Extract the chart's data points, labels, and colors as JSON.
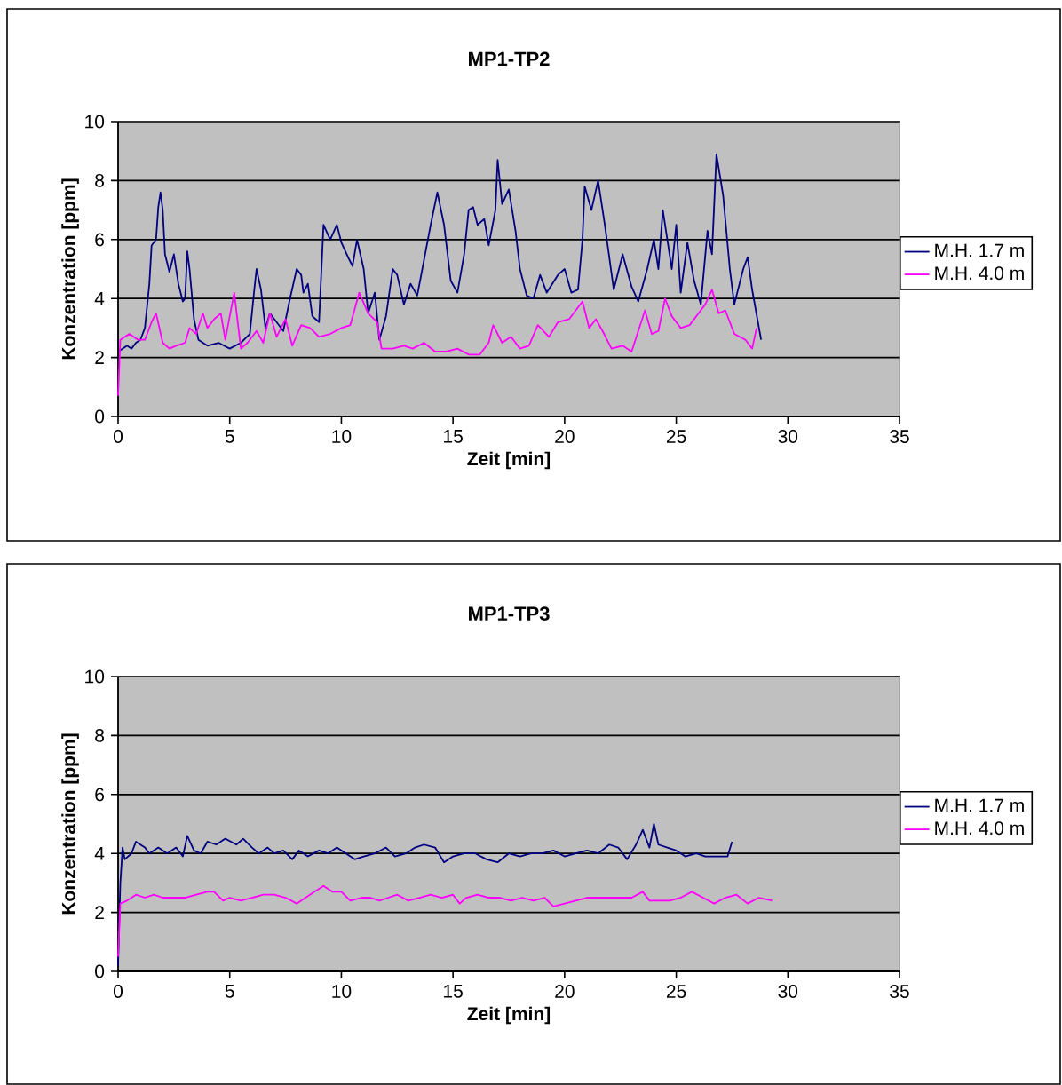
{
  "chart_data": [
    {
      "type": "line",
      "title": "MP1-TP2",
      "xlabel": "Zeit [min]",
      "ylabel": "Konzentration [ppm]",
      "xlim": [
        0,
        35
      ],
      "xticks": [
        0,
        5,
        10,
        15,
        20,
        25,
        30,
        35
      ],
      "ylim": [
        0,
        10
      ],
      "yticks": [
        0,
        2,
        4,
        6,
        8,
        10
      ],
      "grid": "y",
      "legend": "right",
      "series": [
        {
          "name": "M.H. 1.7 m",
          "color": "#000080",
          "x": [
            0,
            0.2,
            0.4,
            0.6,
            0.8,
            1.0,
            1.2,
            1.4,
            1.5,
            1.7,
            1.8,
            1.9,
            2.0,
            2.1,
            2.3,
            2.5,
            2.7,
            2.9,
            3.0,
            3.1,
            3.2,
            3.4,
            3.6,
            4.0,
            4.5,
            5.0,
            5.5,
            5.9,
            6.1,
            6.2,
            6.4,
            6.6,
            6.8,
            7.0,
            7.4,
            7.7,
            8.0,
            8.2,
            8.3,
            8.5,
            8.7,
            9.0,
            9.2,
            9.5,
            9.8,
            10.0,
            10.3,
            10.5,
            10.7,
            11.0,
            11.2,
            11.5,
            11.7,
            12.0,
            12.3,
            12.5,
            12.8,
            13.1,
            13.4,
            13.7,
            14.0,
            14.3,
            14.6,
            14.9,
            15.2,
            15.5,
            15.7,
            15.9,
            16.1,
            16.4,
            16.6,
            16.9,
            17.0,
            17.2,
            17.5,
            17.8,
            18.0,
            18.3,
            18.6,
            18.9,
            19.2,
            19.7,
            20.0,
            20.3,
            20.6,
            20.8,
            20.9,
            21.2,
            21.5,
            21.8,
            22.2,
            22.6,
            23.0,
            23.3,
            23.7,
            24.0,
            24.2,
            24.4,
            24.6,
            24.8,
            25.0,
            25.2,
            25.5,
            25.8,
            26.1,
            26.4,
            26.6,
            26.8,
            27.1,
            27.4,
            27.6,
            28.0,
            28.2,
            28.4,
            28.8
          ],
          "values": [
            2.2,
            2.3,
            2.4,
            2.3,
            2.5,
            2.6,
            3.0,
            4.5,
            5.8,
            6.0,
            7.1,
            7.6,
            7.0,
            5.5,
            4.9,
            5.5,
            4.5,
            3.9,
            4.0,
            5.6,
            5.0,
            3.3,
            2.6,
            2.4,
            2.5,
            2.3,
            2.5,
            2.8,
            4.3,
            5.0,
            4.3,
            3.0,
            3.5,
            3.3,
            2.9,
            4.0,
            5.0,
            4.8,
            4.2,
            4.5,
            3.4,
            3.2,
            6.5,
            6.0,
            6.5,
            5.9,
            5.4,
            5.1,
            6.0,
            5.0,
            3.5,
            4.2,
            2.6,
            3.4,
            5.0,
            4.8,
            3.8,
            4.5,
            4.1,
            5.3,
            6.5,
            7.6,
            6.5,
            4.6,
            4.2,
            5.5,
            7.0,
            7.1,
            6.5,
            6.7,
            5.8,
            7.0,
            8.7,
            7.2,
            7.7,
            6.3,
            5.0,
            4.1,
            4.0,
            4.8,
            4.2,
            4.8,
            5.0,
            4.2,
            4.3,
            6.0,
            7.8,
            7.0,
            8.0,
            6.5,
            4.3,
            5.5,
            4.4,
            3.9,
            5.0,
            6.0,
            5.0,
            7.0,
            6.0,
            5.0,
            6.5,
            4.2,
            5.9,
            4.6,
            3.8,
            6.3,
            5.5,
            8.9,
            7.5,
            5.0,
            3.8,
            5.0,
            5.4,
            4.3,
            2.6
          ]
        },
        {
          "name": "M.H. 4.0 m",
          "color": "#ff00ff",
          "x": [
            0,
            0.1,
            0.5,
            0.9,
            1.2,
            1.5,
            1.7,
            2.0,
            2.3,
            2.6,
            3.0,
            3.2,
            3.5,
            3.8,
            4.0,
            4.3,
            4.6,
            4.8,
            5.2,
            5.5,
            5.8,
            6.2,
            6.5,
            6.8,
            7.1,
            7.5,
            7.8,
            8.2,
            8.6,
            9.0,
            9.5,
            10.0,
            10.4,
            10.8,
            11.2,
            11.6,
            11.8,
            12.3,
            12.8,
            13.2,
            13.7,
            14.2,
            14.7,
            15.2,
            15.7,
            16.2,
            16.6,
            16.8,
            17.2,
            17.6,
            18.0,
            18.4,
            18.8,
            19.3,
            19.7,
            20.2,
            20.8,
            21.1,
            21.4,
            21.7,
            22.1,
            22.6,
            23.0,
            23.6,
            23.9,
            24.2,
            24.5,
            24.8,
            25.2,
            25.6,
            26.0,
            26.3,
            26.6,
            26.9,
            27.2,
            27.6,
            28.1,
            28.4,
            28.6
          ],
          "values": [
            0.7,
            2.6,
            2.8,
            2.6,
            2.6,
            3.2,
            3.5,
            2.5,
            2.3,
            2.4,
            2.5,
            3.0,
            2.8,
            3.5,
            3.0,
            3.3,
            3.5,
            2.6,
            4.2,
            2.3,
            2.5,
            2.9,
            2.5,
            3.5,
            2.7,
            3.3,
            2.4,
            3.1,
            3.0,
            2.7,
            2.8,
            3.0,
            3.1,
            4.2,
            3.5,
            3.2,
            2.3,
            2.3,
            2.4,
            2.3,
            2.5,
            2.2,
            2.2,
            2.3,
            2.1,
            2.1,
            2.5,
            3.1,
            2.5,
            2.7,
            2.3,
            2.4,
            3.1,
            2.7,
            3.2,
            3.3,
            3.9,
            3.0,
            3.3,
            2.9,
            2.3,
            2.4,
            2.2,
            3.6,
            2.8,
            2.9,
            4.0,
            3.4,
            3.0,
            3.1,
            3.5,
            3.8,
            4.3,
            3.5,
            3.6,
            2.8,
            2.6,
            2.3,
            3.0
          ]
        }
      ]
    },
    {
      "type": "line",
      "title": "MP1-TP3",
      "xlabel": "Zeit [min]",
      "ylabel": "Konzentration [ppm]",
      "xlim": [
        0,
        35
      ],
      "xticks": [
        0,
        5,
        10,
        15,
        20,
        25,
        30,
        35
      ],
      "ylim": [
        0,
        10
      ],
      "yticks": [
        0,
        2,
        4,
        6,
        8,
        10
      ],
      "grid": "y",
      "legend": "right",
      "series": [
        {
          "name": "M.H. 1.7 m",
          "color": "#000080",
          "x": [
            0,
            0.1,
            0.2,
            0.3,
            0.6,
            0.8,
            1.2,
            1.4,
            1.8,
            2.2,
            2.6,
            2.9,
            3.1,
            3.4,
            3.7,
            4.0,
            4.4,
            4.8,
            5.3,
            5.6,
            6.0,
            6.3,
            6.7,
            7.0,
            7.4,
            7.8,
            8.1,
            8.5,
            9.0,
            9.4,
            9.8,
            10.2,
            10.6,
            11.0,
            11.5,
            12.0,
            12.4,
            12.9,
            13.3,
            13.7,
            14.2,
            14.6,
            15.0,
            15.5,
            16.0,
            16.5,
            17.0,
            17.5,
            18.0,
            18.5,
            19.0,
            19.5,
            20.0,
            20.5,
            21.0,
            21.5,
            22.0,
            22.4,
            22.8,
            23.2,
            23.5,
            23.8,
            24.0,
            24.2,
            24.6,
            25.0,
            25.4,
            25.9,
            26.3,
            26.8,
            27.3,
            27.5
          ],
          "values": [
            0.2,
            3.0,
            4.2,
            3.8,
            4.0,
            4.4,
            4.2,
            4.0,
            4.2,
            4.0,
            4.2,
            3.9,
            4.6,
            4.1,
            4.0,
            4.4,
            4.3,
            4.5,
            4.3,
            4.5,
            4.2,
            4.0,
            4.2,
            4.0,
            4.1,
            3.8,
            4.1,
            3.9,
            4.1,
            4.0,
            4.2,
            4.0,
            3.8,
            3.9,
            4.0,
            4.2,
            3.9,
            4.0,
            4.2,
            4.3,
            4.2,
            3.7,
            3.9,
            4.0,
            4.0,
            3.8,
            3.7,
            4.0,
            3.9,
            4.0,
            4.0,
            4.1,
            3.9,
            4.0,
            4.1,
            4.0,
            4.3,
            4.2,
            3.8,
            4.3,
            4.8,
            4.2,
            5.0,
            4.3,
            4.2,
            4.1,
            3.9,
            4.0,
            3.9,
            3.9,
            3.9,
            4.4
          ]
        },
        {
          "name": "M.H. 4.0 m",
          "color": "#ff00ff",
          "x": [
            0,
            0.1,
            0.4,
            0.8,
            1.2,
            1.6,
            2.0,
            2.5,
            3.0,
            3.5,
            4.0,
            4.3,
            4.7,
            5.0,
            5.5,
            6.0,
            6.5,
            7.0,
            7.5,
            8.0,
            8.4,
            8.8,
            9.2,
            9.6,
            10.0,
            10.4,
            10.9,
            11.3,
            11.7,
            12.1,
            12.5,
            13.0,
            13.5,
            14.0,
            14.5,
            15.0,
            15.3,
            15.6,
            16.1,
            16.6,
            17.1,
            17.6,
            18.1,
            18.6,
            19.1,
            19.5,
            20.0,
            20.5,
            21.0,
            21.5,
            22.0,
            22.5,
            23.0,
            23.5,
            23.8,
            24.3,
            24.7,
            25.2,
            25.7,
            26.2,
            26.7,
            27.2,
            27.7,
            28.2,
            28.7,
            29.3
          ],
          "values": [
            0.5,
            2.3,
            2.4,
            2.6,
            2.5,
            2.6,
            2.5,
            2.5,
            2.5,
            2.6,
            2.7,
            2.7,
            2.4,
            2.5,
            2.4,
            2.5,
            2.6,
            2.6,
            2.5,
            2.3,
            2.5,
            2.7,
            2.9,
            2.7,
            2.7,
            2.4,
            2.5,
            2.5,
            2.4,
            2.5,
            2.6,
            2.4,
            2.5,
            2.6,
            2.5,
            2.6,
            2.3,
            2.5,
            2.6,
            2.5,
            2.5,
            2.4,
            2.5,
            2.4,
            2.5,
            2.2,
            2.3,
            2.4,
            2.5,
            2.5,
            2.5,
            2.5,
            2.5,
            2.7,
            2.4,
            2.4,
            2.4,
            2.5,
            2.7,
            2.5,
            2.3,
            2.5,
            2.6,
            2.3,
            2.5,
            2.4
          ]
        }
      ]
    }
  ]
}
